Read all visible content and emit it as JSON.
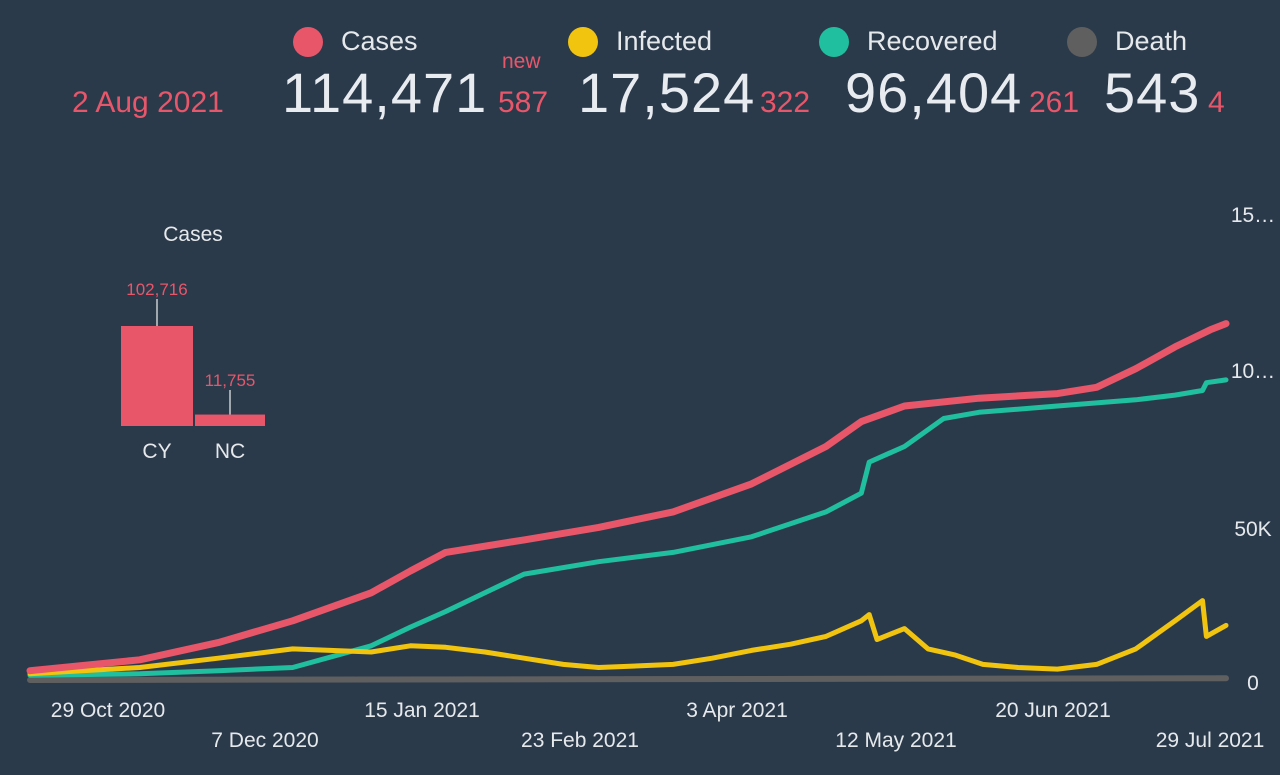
{
  "header": {
    "date": "2 Aug 2021",
    "new_label": "new",
    "stats": [
      {
        "label": "Cases",
        "value": "114,471",
        "delta": "587",
        "color": "#e8566a"
      },
      {
        "label": "Infected",
        "value": "17,524",
        "delta": "322",
        "color": "#f1c40f"
      },
      {
        "label": "Recovered",
        "value": "96,404",
        "delta": "261",
        "color": "#1fbf9f"
      },
      {
        "label": "Death",
        "value": "543",
        "delta": "4",
        "color": "#5f5f5f"
      }
    ]
  },
  "chart_data": [
    {
      "type": "line",
      "x_ticks": [
        "29 Oct 2020",
        "7 Dec 2020",
        "15 Jan 2021",
        "23 Feb 2021",
        "3 Apr 2021",
        "12 May 2021",
        "20 Jun 2021",
        "29 Jul 2021"
      ],
      "y_ticks": [
        "0",
        "50K",
        "10…",
        "15…"
      ],
      "ylim": [
        0,
        150000
      ],
      "grid": false,
      "series": [
        {
          "name": "Cases",
          "color": "#e8566a",
          "points": [
            [
              "2020-10-01",
              3000
            ],
            [
              "2020-10-29",
              6500
            ],
            [
              "2020-11-18",
              12000
            ],
            [
              "2020-12-07",
              19000
            ],
            [
              "2020-12-27",
              28000
            ],
            [
              "2021-01-06",
              35000
            ],
            [
              "2021-01-15",
              41000
            ],
            [
              "2021-02-04",
              45000
            ],
            [
              "2021-02-23",
              49000
            ],
            [
              "2021-03-14",
              54000
            ],
            [
              "2021-04-03",
              63000
            ],
            [
              "2021-04-22",
              75000
            ],
            [
              "2021-05-01",
              83000
            ],
            [
              "2021-05-12",
              88000
            ],
            [
              "2021-05-31",
              90500
            ],
            [
              "2021-06-20",
              92000
            ],
            [
              "2021-06-30",
              94000
            ],
            [
              "2021-07-10",
              100000
            ],
            [
              "2021-07-20",
              107000
            ],
            [
              "2021-07-29",
              112500
            ],
            [
              "2021-08-02",
              114471
            ]
          ]
        },
        {
          "name": "Infected",
          "color": "#f1c40f",
          "points": [
            [
              "2020-10-01",
              2000
            ],
            [
              "2020-10-29",
              4000
            ],
            [
              "2020-11-18",
              7000
            ],
            [
              "2020-12-07",
              10000
            ],
            [
              "2020-12-27",
              9000
            ],
            [
              "2021-01-06",
              11000
            ],
            [
              "2021-01-15",
              10500
            ],
            [
              "2021-01-25",
              9000
            ],
            [
              "2021-02-04",
              7000
            ],
            [
              "2021-02-14",
              5000
            ],
            [
              "2021-02-23",
              4000
            ],
            [
              "2021-03-14",
              5000
            ],
            [
              "2021-03-24",
              7000
            ],
            [
              "2021-04-03",
              9500
            ],
            [
              "2021-04-13",
              11500
            ],
            [
              "2021-04-22",
              14000
            ],
            [
              "2021-05-01",
              19000
            ],
            [
              "2021-05-03",
              21000
            ],
            [
              "2021-05-05",
              13000
            ],
            [
              "2021-05-12",
              16500
            ],
            [
              "2021-05-18",
              10000
            ],
            [
              "2021-05-25",
              8000
            ],
            [
              "2021-06-01",
              5000
            ],
            [
              "2021-06-10",
              4000
            ],
            [
              "2021-06-20",
              3500
            ],
            [
              "2021-06-30",
              5000
            ],
            [
              "2021-07-10",
              10000
            ],
            [
              "2021-07-20",
              19000
            ],
            [
              "2021-07-27",
              25500
            ],
            [
              "2021-07-28",
              14000
            ],
            [
              "2021-08-02",
              17524
            ]
          ]
        },
        {
          "name": "Recovered",
          "color": "#1fbf9f",
          "points": [
            [
              "2020-10-01",
              1500
            ],
            [
              "2020-10-29",
              2000
            ],
            [
              "2020-11-18",
              3000
            ],
            [
              "2020-12-07",
              4000
            ],
            [
              "2020-12-27",
              11000
            ],
            [
              "2021-01-06",
              17000
            ],
            [
              "2021-01-15",
              22000
            ],
            [
              "2021-01-25",
              28000
            ],
            [
              "2021-02-04",
              34000
            ],
            [
              "2021-02-23",
              38000
            ],
            [
              "2021-03-14",
              41000
            ],
            [
              "2021-04-03",
              46000
            ],
            [
              "2021-04-22",
              54000
            ],
            [
              "2021-05-01",
              60000
            ],
            [
              "2021-05-03",
              70000
            ],
            [
              "2021-05-12",
              75000
            ],
            [
              "2021-05-22",
              84000
            ],
            [
              "2021-05-31",
              86000
            ],
            [
              "2021-06-20",
              88000
            ],
            [
              "2021-06-30",
              89000
            ],
            [
              "2021-07-10",
              90000
            ],
            [
              "2021-07-20",
              91500
            ],
            [
              "2021-07-27",
              93000
            ],
            [
              "2021-07-28",
              95500
            ],
            [
              "2021-08-02",
              96404
            ]
          ]
        },
        {
          "name": "Death",
          "color": "#5f5f5f",
          "points": [
            [
              "2020-10-01",
              0
            ],
            [
              "2021-08-02",
              543
            ]
          ]
        }
      ]
    },
    {
      "type": "bar",
      "title": "Cases",
      "categories": [
        "CY",
        "NC"
      ],
      "values": [
        102716,
        11755
      ],
      "value_labels": [
        "102,716",
        "11,755"
      ],
      "color": "#e8566a"
    }
  ]
}
